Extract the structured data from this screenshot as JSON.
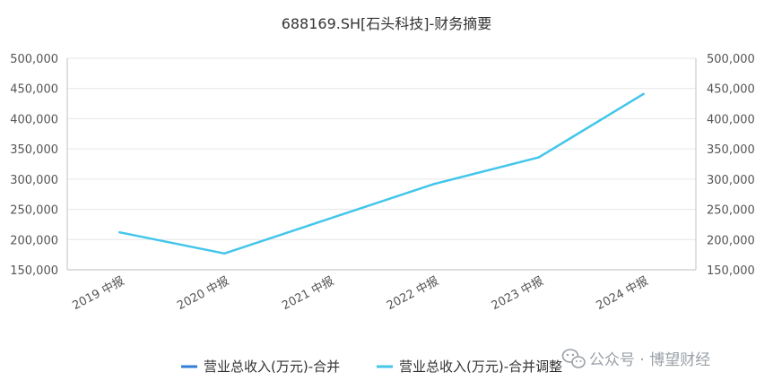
{
  "chart_data": {
    "type": "line",
    "title": "688169.SH[石头科技]-财务摘要",
    "categories": [
      "2019 中报",
      "2020 中报",
      "2021 中报",
      "2022 中报",
      "2023 中报",
      "2024 中报"
    ],
    "series": [
      {
        "name": "营业总收入(万元)-合并",
        "color": "#2f7ed8",
        "values": [
          null,
          null,
          null,
          null,
          null,
          null
        ]
      },
      {
        "name": "营业总收入(万元)-合并调整",
        "color": "#43c6ea",
        "values": [
          212000,
          177000,
          null,
          292000,
          336000,
          441000
        ]
      }
    ],
    "y_ticks": [
      "150,000",
      "200,000",
      "250,000",
      "300,000",
      "350,000",
      "400,000",
      "450,000",
      "500,000"
    ],
    "ylim": [
      150000,
      500000
    ],
    "y_right_axis": true,
    "grid": true,
    "legend_position": "bottom"
  },
  "watermark": {
    "text": "公众号 · 博望财经",
    "icon": "wechat-icon"
  }
}
